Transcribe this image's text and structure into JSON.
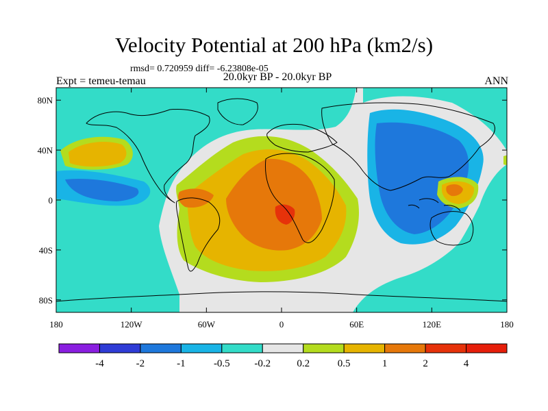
{
  "title": "Velocity Potential at 200 hPa (km2/s)",
  "stats": "rmsd= 0.720959 diff= -6.23808e-05",
  "left_label": "Expt = temeu-temau",
  "center_label": "20.0kyr BP - 20.0kyr BP",
  "right_label": "ANN",
  "lat_ticks": [
    {
      "label": "80N",
      "lat": 80
    },
    {
      "label": "40N",
      "lat": 40
    },
    {
      "label": "0",
      "lat": 0
    },
    {
      "label": "40S",
      "lat": -40
    },
    {
      "label": "80S",
      "lat": -80
    }
  ],
  "lon_ticks": [
    {
      "label": "180",
      "lon": -180
    },
    {
      "label": "120W",
      "lon": -120
    },
    {
      "label": "60W",
      "lon": -60
    },
    {
      "label": "0",
      "lon": 0
    },
    {
      "label": "60E",
      "lon": 60
    },
    {
      "label": "120E",
      "lon": 120
    },
    {
      "label": "180",
      "lon": 180
    }
  ],
  "colorbar": {
    "colors": [
      "#8a1ee0",
      "#2f3cd6",
      "#1e78dc",
      "#19b4e6",
      "#33dcc8",
      "#e6e6e6",
      "#b4dc1e",
      "#e6b400",
      "#e6780a",
      "#e6320a",
      "#e61e0a"
    ],
    "labels": [
      "-4",
      "-2",
      "-1",
      "-0.5",
      "-0.2",
      "0.2",
      "0.5",
      "1",
      "2",
      "4"
    ]
  },
  "fill_colors": {
    "background": "#e6e6e6",
    "cyan": "#33dcc8",
    "light_blue": "#19b4e6",
    "mid_blue": "#1e78dc",
    "yellow_green": "#b4dc1e",
    "yellow": "#e6b400",
    "orange": "#e6780a",
    "red": "#e6320a"
  }
}
